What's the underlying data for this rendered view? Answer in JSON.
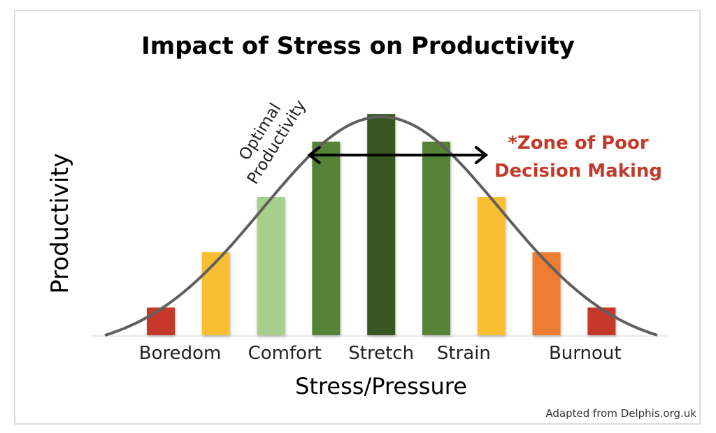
{
  "chart_data": {
    "type": "bar",
    "title": "Impact of Stress on Productivity",
    "xlabel": "Stress/Pressure",
    "ylabel": "Productivity",
    "ylim": [
      0,
      9
    ],
    "values": [
      1,
      3,
      5,
      7,
      8,
      7,
      5,
      3,
      1
    ],
    "bar_colors": [
      "#c5372a",
      "#f9be33",
      "#a8d08d",
      "#548235",
      "#375623",
      "#548235",
      "#f9be33",
      "#ed7d31",
      "#c5372a"
    ],
    "zone_labels": [
      {
        "text": "Boredom",
        "bar_index": 0.35
      },
      {
        "text": "Comfort",
        "bar_index": 2.25
      },
      {
        "text": "Stretch",
        "bar_index": 4
      },
      {
        "text": "Strain",
        "bar_index": 5.5
      },
      {
        "text": "Burnout",
        "bar_index": 7.7
      }
    ],
    "curve": {
      "type": "bell",
      "color": "#5f5f5f",
      "peak_bar_index": 4
    },
    "annotations": {
      "optimal_line1": "Optimal",
      "optimal_line2": "Productivity",
      "optimal_range_bar_index": [
        2.7,
        5.9
      ],
      "zone_line1": "*Zone of Poor",
      "zone_line2": "Decision Making",
      "zone_color": "#c23b2a"
    },
    "source": "Adapted from Delphis.org.uk",
    "grid": false,
    "legend": "none"
  }
}
